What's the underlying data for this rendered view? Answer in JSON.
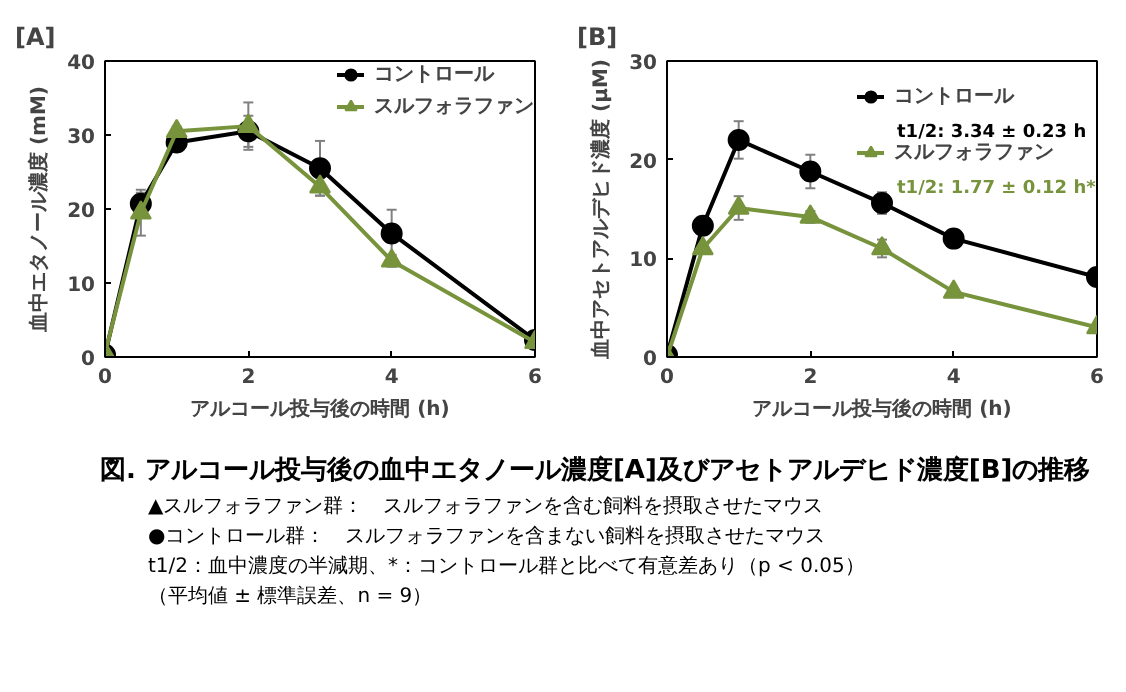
{
  "chart_data": [
    {
      "type": "line",
      "title": "[A]",
      "xlabel": "アルコール投与後の時間 (h)",
      "ylabel": "血中エタノール濃度 (mM)",
      "x": [
        0,
        0.5,
        1,
        2,
        3,
        4,
        6
      ],
      "xlim": [
        0,
        6
      ],
      "xticks": [
        0,
        2,
        4,
        6
      ],
      "ylim": [
        0,
        40
      ],
      "yticks": [
        0,
        10,
        20,
        30,
        40
      ],
      "grid": false,
      "legend": "top right",
      "series": [
        {
          "name": "コントロール",
          "color": "#000000",
          "marker": "circle",
          "values": [
            0.3,
            20.7,
            29.0,
            30.5,
            25.5,
            16.7,
            2.3
          ],
          "errors": [
            null,
            1.5,
            0.8,
            2.1,
            3.7,
            3.2,
            0.5
          ]
        },
        {
          "name": "スルフォラファン",
          "color": "#77933c",
          "marker": "triangle",
          "values": [
            0.5,
            19.5,
            30.5,
            31.2,
            23.0,
            13.0,
            2.0
          ],
          "errors": [
            null,
            3.1,
            0.6,
            3.2,
            1.2,
            0.8,
            0.4
          ]
        }
      ]
    },
    {
      "type": "line",
      "title": "[B]",
      "xlabel": "アルコール投与後の時間 (h)",
      "ylabel": "血中アセトアルデヒド濃度 (μM)",
      "x": [
        0,
        0.5,
        1,
        2,
        3,
        4,
        6
      ],
      "xlim": [
        0,
        6
      ],
      "xticks": [
        0,
        2,
        4,
        6
      ],
      "ylim": [
        0,
        30
      ],
      "yticks": [
        0,
        10,
        20,
        30
      ],
      "grid": false,
      "legend": "top right",
      "annotations": [
        "t1/2: 3.34 ± 0.23 h",
        "t1/2: 1.77 ± 0.12 h*"
      ],
      "series": [
        {
          "name": "コントロール",
          "color": "#000000",
          "marker": "circle",
          "values": [
            0.2,
            13.3,
            22.0,
            18.8,
            15.6,
            12.0,
            8.1
          ],
          "errors": [
            null,
            0.8,
            1.9,
            1.7,
            1.1,
            0.5,
            0.4
          ]
        },
        {
          "name": "スルフォラファン",
          "color": "#77933c",
          "marker": "triangle",
          "values": [
            0.0,
            11.0,
            15.1,
            14.2,
            11.0,
            6.6,
            3.0
          ],
          "errors": [
            null,
            null,
            1.2,
            0.6,
            0.9,
            null,
            0.3
          ]
        }
      ]
    },
    {
      "type": "other",
      "title": "図. アルコール投与後の血中エタノール濃度[A]及びアセトアルデヒド濃度[B]の推移",
      "annotations": [
        "▲スルフォラファン群：　スルフォラファンを含む飼料を摂取させたマウス",
        "●コントロール群：　スルフォラファンを含まない飼料を摂取させたマウス",
        "t1/2：血中濃度の半減期、*：コントロール群と比べて有意差あり（p < 0.05）",
        "（平均値 ± 標準誤差、n = 9）"
      ]
    }
  ]
}
